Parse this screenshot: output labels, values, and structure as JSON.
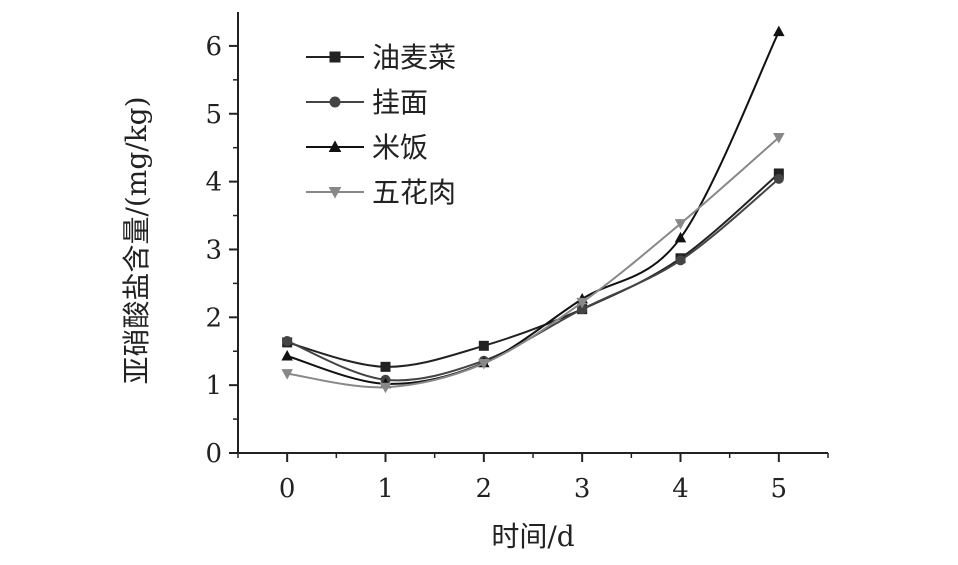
{
  "chart_data": {
    "type": "line",
    "xlabel": "时间/d",
    "ylabel": "亚硝酸盐含量/(mg/kg)",
    "xlim": [
      -0.5,
      5.5
    ],
    "ylim": [
      0,
      6.5
    ],
    "xticks": [
      0,
      1,
      2,
      3,
      4,
      5
    ],
    "yticks": [
      0,
      1,
      2,
      3,
      4,
      5,
      6
    ],
    "grid": false,
    "legend_position": "top-left",
    "x": [
      0,
      1,
      2,
      3,
      4,
      5
    ],
    "series": [
      {
        "name": "油麦菜",
        "marker": "square",
        "values": [
          1.63,
          1.27,
          1.58,
          2.12,
          2.87,
          4.12
        ],
        "color": "#222222"
      },
      {
        "name": "挂面",
        "marker": "circle",
        "values": [
          1.65,
          1.08,
          1.36,
          2.12,
          2.84,
          4.04
        ],
        "color": "#444444"
      },
      {
        "name": "米饭",
        "marker": "triangle-up",
        "values": [
          1.43,
          1.02,
          1.33,
          2.27,
          3.17,
          6.21
        ],
        "color": "#111111"
      },
      {
        "name": "五花肉",
        "marker": "triangle-down",
        "values": [
          1.17,
          0.97,
          1.32,
          2.22,
          3.38,
          4.65
        ],
        "color": "#888888"
      }
    ]
  }
}
